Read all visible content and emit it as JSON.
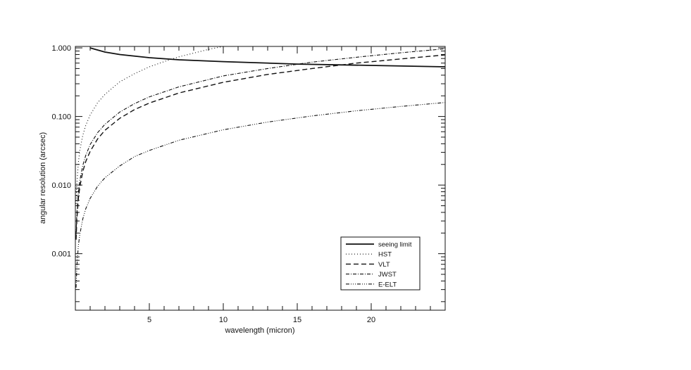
{
  "chart_data": {
    "type": "line",
    "xlabel": "wavelength (micron)",
    "ylabel": "angular resolution (arcsec)",
    "xlim": [
      0,
      25
    ],
    "ylim": [
      0.00015,
      1.05
    ],
    "yscale": "log",
    "grid": false,
    "legend_position": "bottom-right",
    "x_ticks": [
      5,
      10,
      15,
      20
    ],
    "x_tick_labels": [
      "5",
      "10",
      "15",
      "20"
    ],
    "y_ticks": [
      0.001,
      0.01,
      0.1,
      1.0
    ],
    "y_tick_labels": [
      "0.001",
      "0.010",
      "0.100",
      "1.000"
    ],
    "series": [
      {
        "name": "seeing limit",
        "dash": "",
        "width": 1.8,
        "x": [
          1,
          2,
          3,
          5,
          7,
          10,
          15,
          20,
          25
        ],
        "y": [
          1.0,
          0.87,
          0.8,
          0.72,
          0.67,
          0.63,
          0.58,
          0.555,
          0.53
        ]
      },
      {
        "name": "HST",
        "dash": "1,3",
        "width": 1.1,
        "x": [
          0.05,
          0.1,
          0.2,
          0.3,
          0.5,
          0.7,
          1,
          1.5,
          2,
          3,
          4,
          5,
          6,
          7,
          8,
          9,
          10
        ],
        "y": [
          0.0053,
          0.0105,
          0.021,
          0.032,
          0.053,
          0.074,
          0.105,
          0.158,
          0.21,
          0.32,
          0.42,
          0.53,
          0.63,
          0.74,
          0.84,
          0.95,
          1.05
        ]
      },
      {
        "name": "VLT",
        "dash": "7,4",
        "width": 1.4,
        "x": [
          0.05,
          0.1,
          0.2,
          0.3,
          0.5,
          0.7,
          1,
          1.5,
          2,
          3,
          4,
          5,
          7,
          10,
          13,
          16,
          19,
          22,
          25
        ],
        "y": [
          0.0016,
          0.0031,
          0.0063,
          0.0094,
          0.0157,
          0.022,
          0.031,
          0.047,
          0.063,
          0.094,
          0.126,
          0.157,
          0.22,
          0.315,
          0.41,
          0.5,
          0.6,
          0.69,
          0.79
        ]
      },
      {
        "name": "JWST",
        "dash": "5,2,1,2",
        "width": 1.1,
        "x": [
          0.05,
          0.1,
          0.2,
          0.3,
          0.5,
          0.7,
          1,
          1.5,
          2,
          3,
          4,
          5,
          7,
          10,
          13,
          16,
          19,
          22,
          25
        ],
        "y": [
          0.0019,
          0.0039,
          0.0077,
          0.0116,
          0.0193,
          0.027,
          0.039,
          0.058,
          0.077,
          0.116,
          0.154,
          0.193,
          0.27,
          0.39,
          0.5,
          0.62,
          0.73,
          0.85,
          0.97
        ]
      },
      {
        "name": "E-ELT",
        "dash": "5,2,1,2,1,2,1,2",
        "width": 1.1,
        "x": [
          0.05,
          0.1,
          0.2,
          0.3,
          0.5,
          0.7,
          1,
          1.5,
          2,
          3,
          4,
          5,
          7,
          10,
          13,
          16,
          19,
          22,
          25
        ],
        "y": [
          0.00032,
          0.00064,
          0.0013,
          0.0019,
          0.0032,
          0.0045,
          0.0064,
          0.0096,
          0.0128,
          0.019,
          0.026,
          0.032,
          0.045,
          0.064,
          0.083,
          0.102,
          0.121,
          0.14,
          0.16
        ]
      }
    ]
  }
}
